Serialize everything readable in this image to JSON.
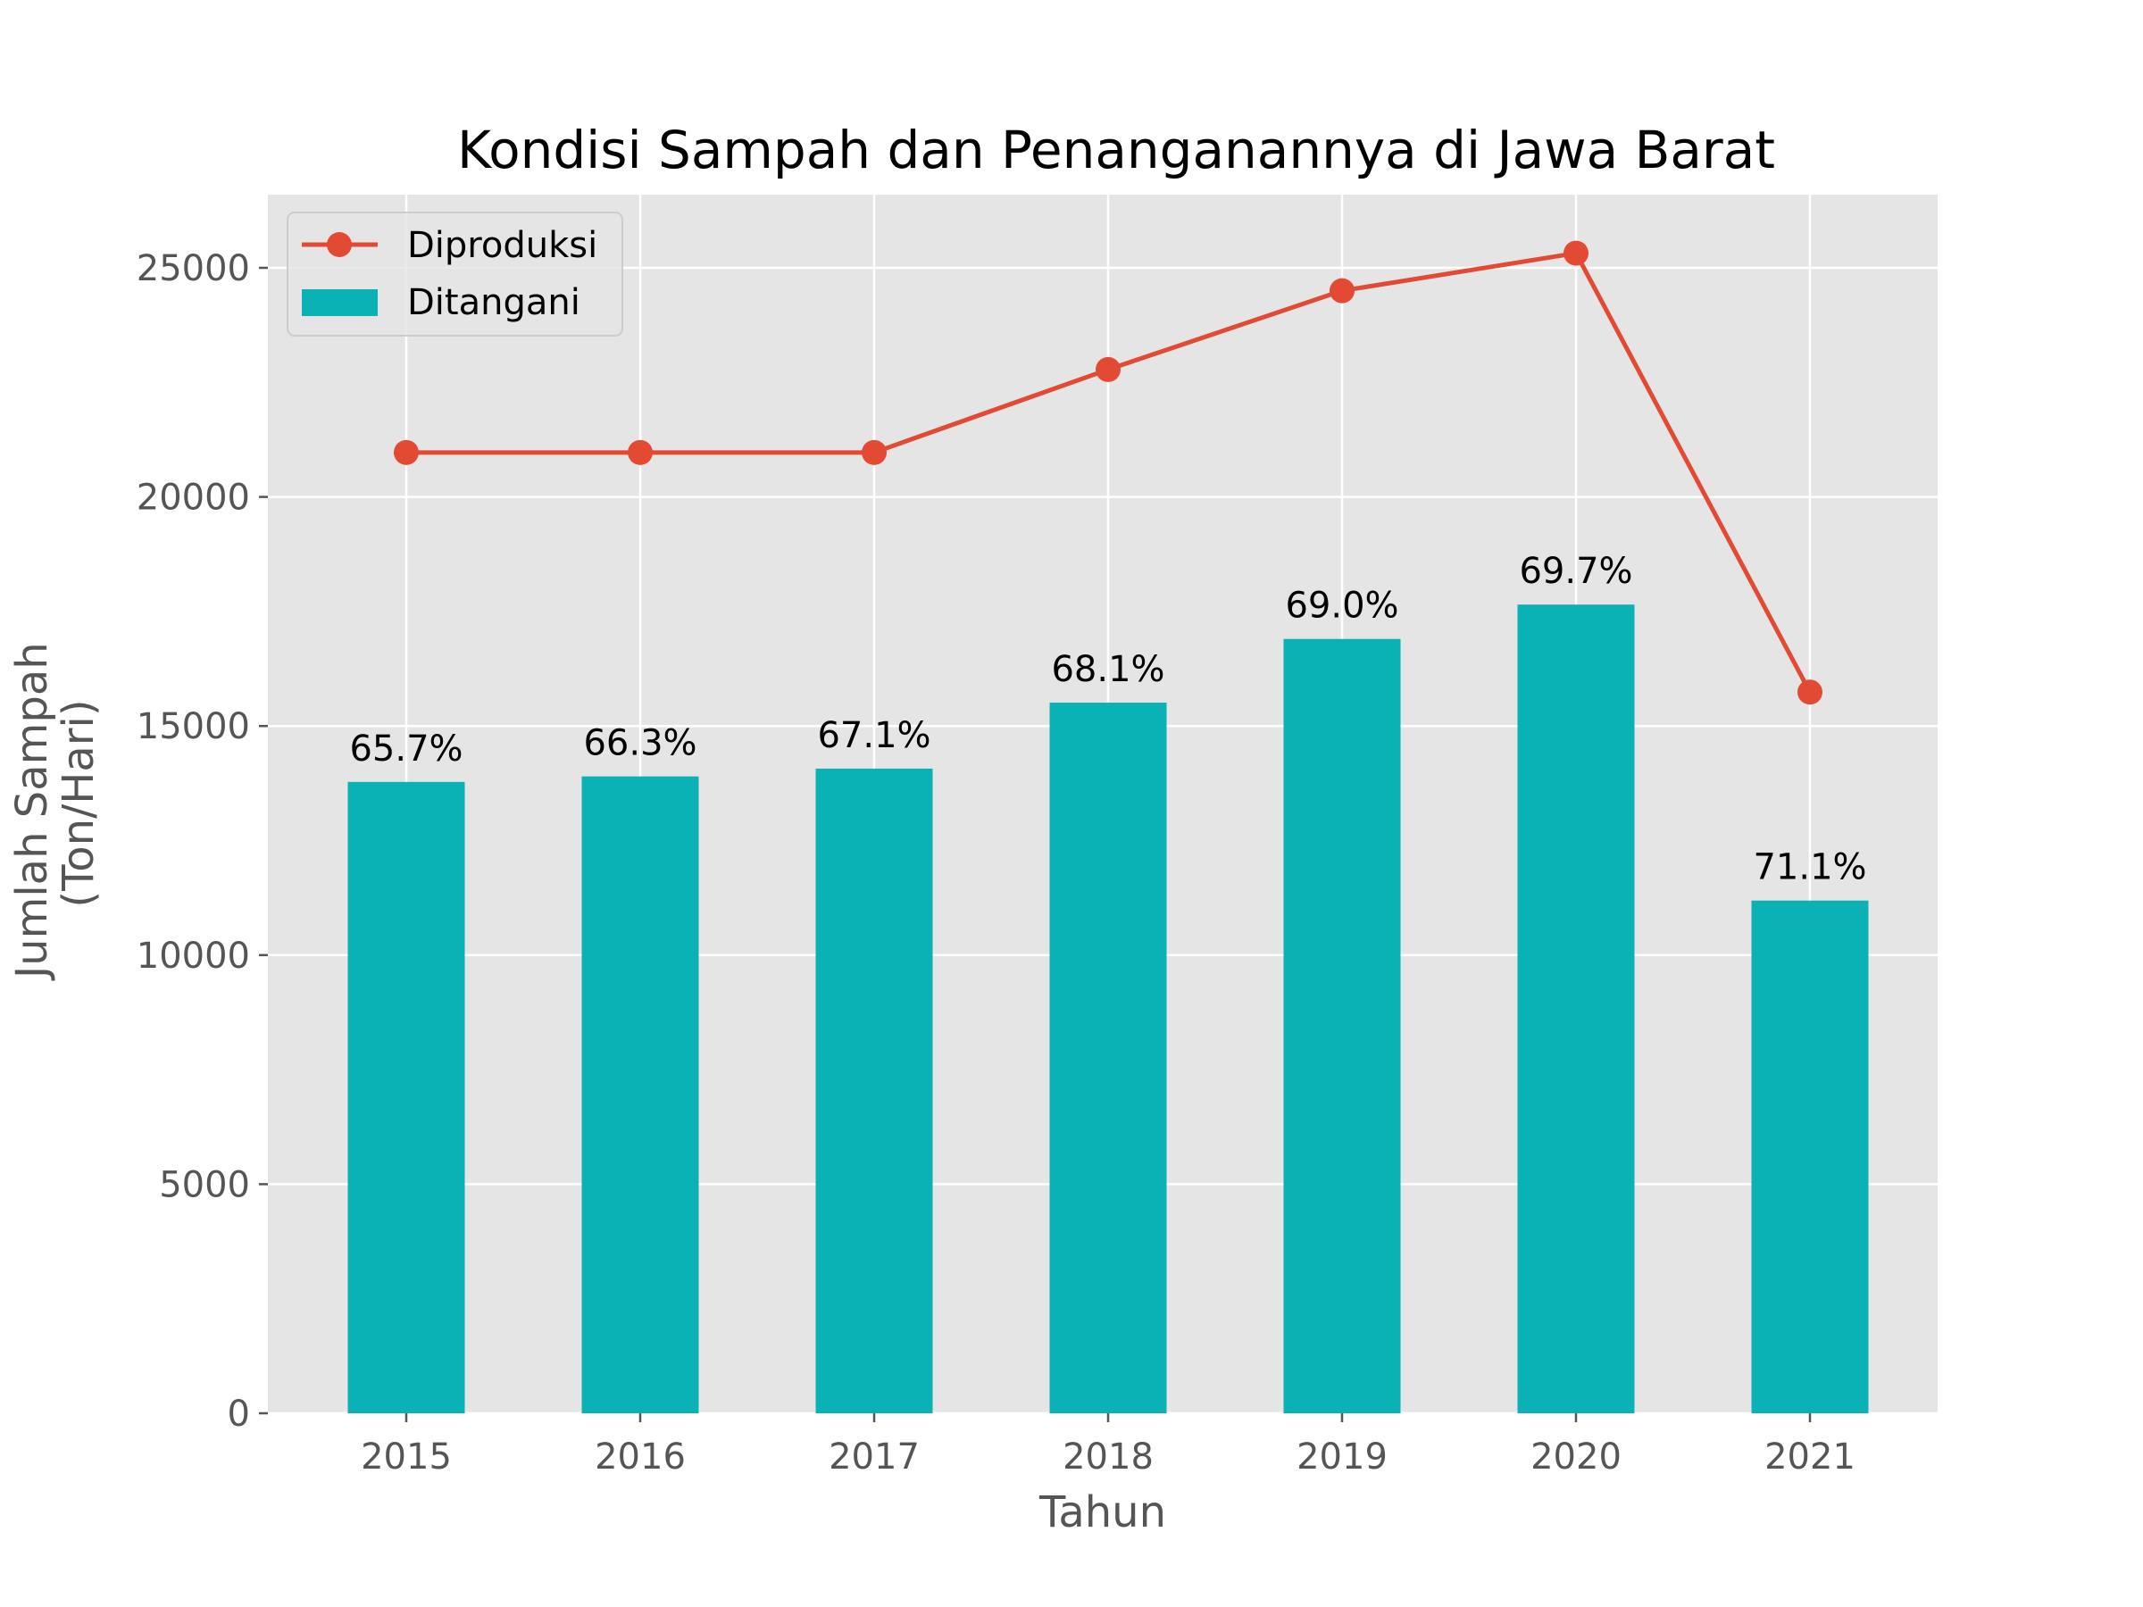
{
  "chart_data": {
    "type": "bar",
    "title": "Kondisi Sampah dan Penanganannya di Jawa Barat",
    "xlabel": "Tahun",
    "ylabel_lines": [
      "Jumlah Sampah",
      "(Ton/Hari)"
    ],
    "categories": [
      "2015",
      "2016",
      "2017",
      "2018",
      "2019",
      "2020",
      "2021"
    ],
    "ylim": [
      0,
      26500
    ],
    "yticks": [
      0,
      5000,
      10000,
      15000,
      20000,
      25000
    ],
    "ytick_labels": [
      "0",
      "5000",
      "10000",
      "15000",
      "20000",
      "25000"
    ],
    "grid": true,
    "legend_position": "top-left",
    "series": [
      {
        "name": "Diproduksi",
        "type": "line",
        "marker": "circle",
        "color": "#e24a33",
        "values": [
          20970,
          20970,
          20970,
          22780,
          24500,
          25320,
          15740
        ]
      },
      {
        "name": "Ditangani",
        "type": "bar",
        "color": "#0ab2b6",
        "values": [
          13780,
          13900,
          14070,
          15510,
          16900,
          17650,
          11190
        ],
        "labels": [
          "65.7%",
          "66.3%",
          "67.1%",
          "68.1%",
          "69.0%",
          "69.7%",
          "71.1%"
        ]
      }
    ],
    "colors": {
      "plot_background": "#e5e5e5",
      "grid": "#ffffff"
    }
  }
}
